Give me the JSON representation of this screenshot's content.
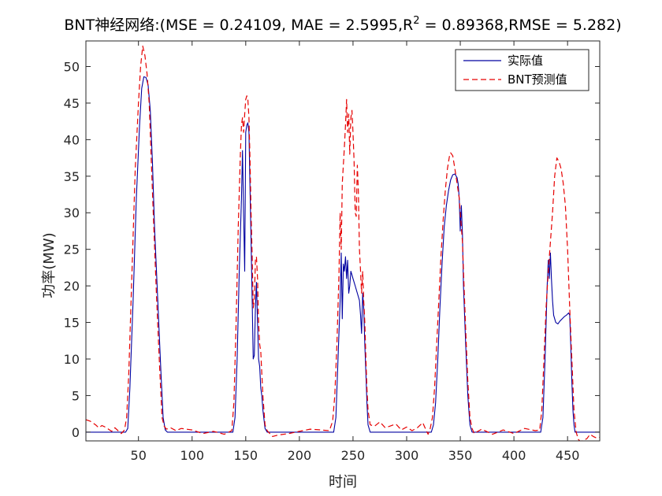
{
  "chart_data": {
    "type": "line",
    "title": "BNT神经网络:(MSE = 0.24109, MAE = 2.5995,R",
    "title_sup": "2",
    "title_tail": " = 0.89368,RMSE = 5.282)",
    "xlabel": "时间",
    "ylabel": "功率(MW)",
    "xlim": [
      1,
      480
    ],
    "ylim": [
      -1.2,
      53.5
    ],
    "xticks": [
      50,
      100,
      150,
      200,
      250,
      300,
      350,
      400,
      450
    ],
    "yticks": [
      0,
      5,
      10,
      15,
      20,
      25,
      30,
      35,
      40,
      45,
      50
    ],
    "legend_position": "top-right",
    "grid": false,
    "series": [
      {
        "name": "实际值",
        "color": "#0000a0",
        "style": "solid",
        "points": [
          [
            1,
            0
          ],
          [
            38,
            0
          ],
          [
            40,
            0.5
          ],
          [
            42,
            6
          ],
          [
            45,
            18
          ],
          [
            48,
            32
          ],
          [
            51,
            42
          ],
          [
            53,
            47
          ],
          [
            55,
            48.6
          ],
          [
            57,
            48.5
          ],
          [
            59,
            47.5
          ],
          [
            61,
            44
          ],
          [
            63,
            37
          ],
          [
            65,
            28
          ],
          [
            68,
            18
          ],
          [
            71,
            8
          ],
          [
            73,
            2
          ],
          [
            75,
            0.3
          ],
          [
            77,
            0
          ],
          [
            138,
            0
          ],
          [
            140,
            2
          ],
          [
            142,
            10
          ],
          [
            144,
            22
          ],
          [
            146,
            32
          ],
          [
            147,
            38.5
          ],
          [
            148,
            30
          ],
          [
            149,
            22
          ],
          [
            150,
            41
          ],
          [
            151,
            42
          ],
          [
            152,
            42.3
          ],
          [
            153,
            41
          ],
          [
            154,
            33
          ],
          [
            155,
            26
          ],
          [
            156,
            18
          ],
          [
            157,
            10
          ],
          [
            158,
            10.5
          ],
          [
            159,
            17
          ],
          [
            160,
            20.5
          ],
          [
            161,
            15
          ],
          [
            162,
            10
          ],
          [
            163,
            9
          ],
          [
            164,
            6
          ],
          [
            165,
            5
          ],
          [
            166,
            3
          ],
          [
            168,
            0.5
          ],
          [
            170,
            0
          ],
          [
            232,
            0
          ],
          [
            234,
            2
          ],
          [
            236,
            10
          ],
          [
            238,
            18
          ],
          [
            239,
            24.5
          ],
          [
            240,
            15.5
          ],
          [
            241,
            23
          ],
          [
            242,
            22
          ],
          [
            243,
            24
          ],
          [
            244,
            21
          ],
          [
            245,
            23.5
          ],
          [
            246,
            19
          ],
          [
            247,
            20
          ],
          [
            248,
            22
          ],
          [
            249,
            21.5
          ],
          [
            250,
            21
          ],
          [
            252,
            20
          ],
          [
            254,
            19
          ],
          [
            256,
            18
          ],
          [
            257,
            16
          ],
          [
            258,
            13.5
          ],
          [
            259,
            19
          ],
          [
            260,
            17
          ],
          [
            261,
            12
          ],
          [
            262,
            8
          ],
          [
            263,
            4
          ],
          [
            264,
            1
          ],
          [
            266,
            0
          ],
          [
            323,
            0
          ],
          [
            325,
            1
          ],
          [
            327,
            4
          ],
          [
            329,
            10
          ],
          [
            331,
            17
          ],
          [
            333,
            23
          ],
          [
            335,
            28
          ],
          [
            337,
            31
          ],
          [
            339,
            33
          ],
          [
            341,
            34.5
          ],
          [
            343,
            35.2
          ],
          [
            345,
            35.3
          ],
          [
            347,
            34.8
          ],
          [
            348,
            34
          ],
          [
            349,
            32
          ],
          [
            350,
            27.5
          ],
          [
            351,
            31
          ],
          [
            352,
            27
          ],
          [
            353,
            20
          ],
          [
            355,
            12
          ],
          [
            357,
            5
          ],
          [
            359,
            1
          ],
          [
            361,
            0
          ],
          [
            425,
            0
          ],
          [
            427,
            2
          ],
          [
            429,
            10
          ],
          [
            431,
            20
          ],
          [
            432,
            23.5
          ],
          [
            433,
            21
          ],
          [
            434,
            24.5
          ],
          [
            435,
            21
          ],
          [
            436,
            18
          ],
          [
            437,
            16
          ],
          [
            439,
            15
          ],
          [
            441,
            14.8
          ],
          [
            443,
            15.2
          ],
          [
            445,
            15.5
          ],
          [
            447,
            15.8
          ],
          [
            449,
            16
          ],
          [
            451,
            16.3
          ],
          [
            452,
            16
          ],
          [
            453,
            12
          ],
          [
            454,
            7
          ],
          [
            455,
            3
          ],
          [
            456,
            1
          ],
          [
            457,
            0
          ],
          [
            480,
            0
          ]
        ]
      },
      {
        "name": "BNT预测值",
        "color": "#e60000",
        "style": "dashed",
        "points": [
          [
            1,
            1.7
          ],
          [
            5,
            1.5
          ],
          [
            10,
            1.0
          ],
          [
            13,
            0.6
          ],
          [
            16,
            0.9
          ],
          [
            19,
            0.7
          ],
          [
            22,
            0.4
          ],
          [
            25,
            0.1
          ],
          [
            28,
            0.6
          ],
          [
            31,
            0.2
          ],
          [
            34,
            -0.2
          ],
          [
            37,
            0.3
          ],
          [
            39,
            2
          ],
          [
            41,
            8
          ],
          [
            44,
            22
          ],
          [
            47,
            36
          ],
          [
            50,
            45
          ],
          [
            52,
            50
          ],
          [
            54,
            52.8
          ],
          [
            56,
            51.5
          ],
          [
            58,
            49
          ],
          [
            60,
            45
          ],
          [
            62,
            37
          ],
          [
            64,
            29
          ],
          [
            67,
            18
          ],
          [
            70,
            8
          ],
          [
            72,
            2
          ],
          [
            74,
            0.8
          ],
          [
            76,
            0.4
          ],
          [
            80,
            0.6
          ],
          [
            85,
            0.2
          ],
          [
            90,
            0.5
          ],
          [
            100,
            0.3
          ],
          [
            110,
            -0.2
          ],
          [
            120,
            0.1
          ],
          [
            130,
            -0.3
          ],
          [
            137,
            0.2
          ],
          [
            139,
            4
          ],
          [
            141,
            15
          ],
          [
            143,
            28
          ],
          [
            145,
            38
          ],
          [
            146,
            42
          ],
          [
            147,
            43
          ],
          [
            148,
            41
          ],
          [
            149,
            43.5
          ],
          [
            150,
            45.5
          ],
          [
            151,
            46
          ],
          [
            152,
            45.5
          ],
          [
            153,
            43
          ],
          [
            154,
            37
          ],
          [
            155,
            30
          ],
          [
            156,
            24
          ],
          [
            157,
            17
          ],
          [
            158,
            18
          ],
          [
            159,
            23.5
          ],
          [
            160,
            24
          ],
          [
            161,
            21
          ],
          [
            162,
            15
          ],
          [
            163,
            12
          ],
          [
            164,
            11
          ],
          [
            165,
            8
          ],
          [
            166,
            5
          ],
          [
            168,
            1
          ],
          [
            170,
            0.2
          ],
          [
            175,
            -0.6
          ],
          [
            180,
            -0.4
          ],
          [
            190,
            -0.2
          ],
          [
            200,
            0.1
          ],
          [
            210,
            0.4
          ],
          [
            220,
            0.3
          ],
          [
            228,
            0.2
          ],
          [
            231,
            1.5
          ],
          [
            233,
            5
          ],
          [
            235,
            12
          ],
          [
            237,
            22
          ],
          [
            238,
            30
          ],
          [
            239,
            25
          ],
          [
            240,
            34
          ],
          [
            242,
            39
          ],
          [
            243,
            42
          ],
          [
            244,
            45.5
          ],
          [
            245,
            41
          ],
          [
            246,
            43.5
          ],
          [
            247,
            38
          ],
          [
            248,
            43
          ],
          [
            249,
            44
          ],
          [
            250,
            41
          ],
          [
            251,
            37
          ],
          [
            252,
            30
          ],
          [
            253,
            29.5
          ],
          [
            254,
            36.5
          ],
          [
            255,
            33
          ],
          [
            256,
            25
          ],
          [
            257,
            22
          ],
          [
            258,
            19
          ],
          [
            259,
            22
          ],
          [
            260,
            18
          ],
          [
            261,
            15
          ],
          [
            262,
            10
          ],
          [
            263,
            6
          ],
          [
            264,
            3
          ],
          [
            266,
            1
          ],
          [
            270,
            0.8
          ],
          [
            275,
            1.4
          ],
          [
            280,
            0.6
          ],
          [
            290,
            1.1
          ],
          [
            295,
            0.3
          ],
          [
            300,
            0.7
          ],
          [
            305,
            0.2
          ],
          [
            310,
            0.6
          ],
          [
            315,
            1.3
          ],
          [
            318,
            0.3
          ],
          [
            320,
            -0.3
          ],
          [
            322,
            0.5
          ],
          [
            324,
            2
          ],
          [
            326,
            6
          ],
          [
            328,
            12
          ],
          [
            330,
            18
          ],
          [
            332,
            24
          ],
          [
            334,
            29
          ],
          [
            336,
            33
          ],
          [
            338,
            36
          ],
          [
            340,
            37.8
          ],
          [
            341,
            38.2
          ],
          [
            343,
            37.8
          ],
          [
            345,
            36
          ],
          [
            347,
            34
          ],
          [
            349,
            32
          ],
          [
            350,
            30
          ],
          [
            351,
            28
          ],
          [
            352,
            26
          ],
          [
            353,
            22
          ],
          [
            355,
            14
          ],
          [
            357,
            7
          ],
          [
            359,
            2
          ],
          [
            361,
            0.5
          ],
          [
            363,
            -0.2
          ],
          [
            365,
            0
          ],
          [
            370,
            0.4
          ],
          [
            380,
            -0.3
          ],
          [
            390,
            0.3
          ],
          [
            400,
            -0.2
          ],
          [
            410,
            0.5
          ],
          [
            420,
            0.2
          ],
          [
            424,
            0.3
          ],
          [
            426,
            3
          ],
          [
            428,
            10
          ],
          [
            430,
            17
          ],
          [
            432,
            22
          ],
          [
            434,
            26
          ],
          [
            436,
            30
          ],
          [
            438,
            35
          ],
          [
            440,
            37.5
          ],
          [
            442,
            37
          ],
          [
            444,
            36
          ],
          [
            446,
            34
          ],
          [
            448,
            31
          ],
          [
            450,
            25
          ],
          [
            452,
            17
          ],
          [
            454,
            10
          ],
          [
            456,
            3
          ],
          [
            458,
            0
          ],
          [
            460,
            -1
          ],
          [
            462,
            -1.3
          ],
          [
            465,
            -1.1
          ],
          [
            468,
            -0.9
          ],
          [
            471,
            -0.3
          ],
          [
            474,
            -0.6
          ],
          [
            477,
            -0.8
          ],
          [
            480,
            -0.7
          ]
        ]
      }
    ]
  }
}
